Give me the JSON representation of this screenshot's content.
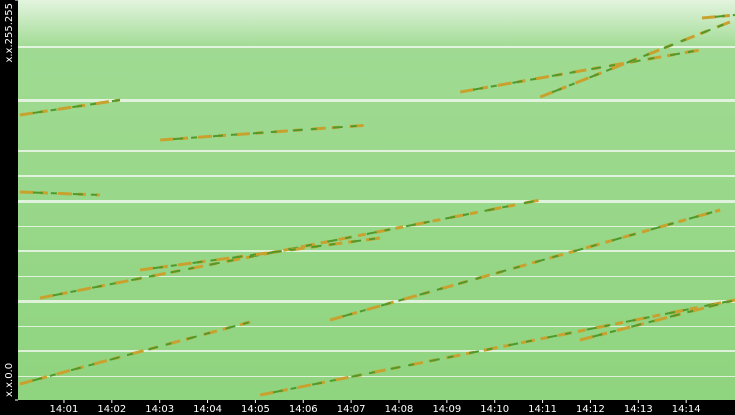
{
  "chart_data": {
    "type": "streakmap",
    "background_color": "#8fd47f",
    "streak_colors": [
      "#c9a12e",
      "#4f9a2a"
    ],
    "xlim": [
      0.04,
      15.02
    ],
    "xticks": [
      {
        "value": 1,
        "label": "14:01"
      },
      {
        "value": 2,
        "label": "14:02"
      },
      {
        "value": 3,
        "label": "14:03"
      },
      {
        "value": 4,
        "label": "14:04"
      },
      {
        "value": 5,
        "label": "14:05"
      },
      {
        "value": 6,
        "label": "14:06"
      },
      {
        "value": 7,
        "label": "14:07"
      },
      {
        "value": 8,
        "label": "14:08"
      },
      {
        "value": 9,
        "label": "14:09"
      },
      {
        "value": 10,
        "label": "14:10"
      },
      {
        "value": 11,
        "label": "14:11"
      },
      {
        "value": 12,
        "label": "14:12"
      },
      {
        "value": 13,
        "label": "14:13"
      },
      {
        "value": 14,
        "label": "14:14"
      }
    ],
    "ylim": [
      0,
      65535
    ],
    "yticks": [
      {
        "value": 0,
        "label": "x.x.0.0"
      },
      {
        "value": 65535,
        "label": "x.x.255.255"
      }
    ],
    "streaks": [
      {
        "x": [
          0.5,
          10.95
        ],
        "y": [
          16711,
          32768
        ]
      },
      {
        "x": [
          5.1,
          15.02
        ],
        "y": [
          819,
          16384
        ]
      },
      {
        "x": [
          0.08,
          4.89
        ],
        "y": [
          2621,
          12780
        ]
      },
      {
        "x": [
          2.59,
          7.6
        ],
        "y": [
          21299,
          26542
        ]
      },
      {
        "x": [
          6.56,
          14.71
        ],
        "y": [
          13107,
          31130
        ]
      },
      {
        "x": [
          9.28,
          14.29
        ],
        "y": [
          50463,
          57344
        ]
      },
      {
        "x": [
          10.95,
          15.02
        ],
        "y": [
          49644,
          62259
        ]
      },
      {
        "x": [
          0.08,
          2.17
        ],
        "y": [
          46694,
          49152
        ]
      },
      {
        "x": [
          3.01,
          7.39
        ],
        "y": [
          42598,
          45056
        ]
      },
      {
        "x": [
          0.08,
          1.75
        ],
        "y": [
          34078,
          33587
        ]
      },
      {
        "x": [
          11.78,
          15.02
        ],
        "y": [
          9830,
          16384
        ]
      },
      {
        "x": [
          14.33,
          15.02
        ],
        "y": [
          62587,
          63078
        ]
      }
    ]
  }
}
